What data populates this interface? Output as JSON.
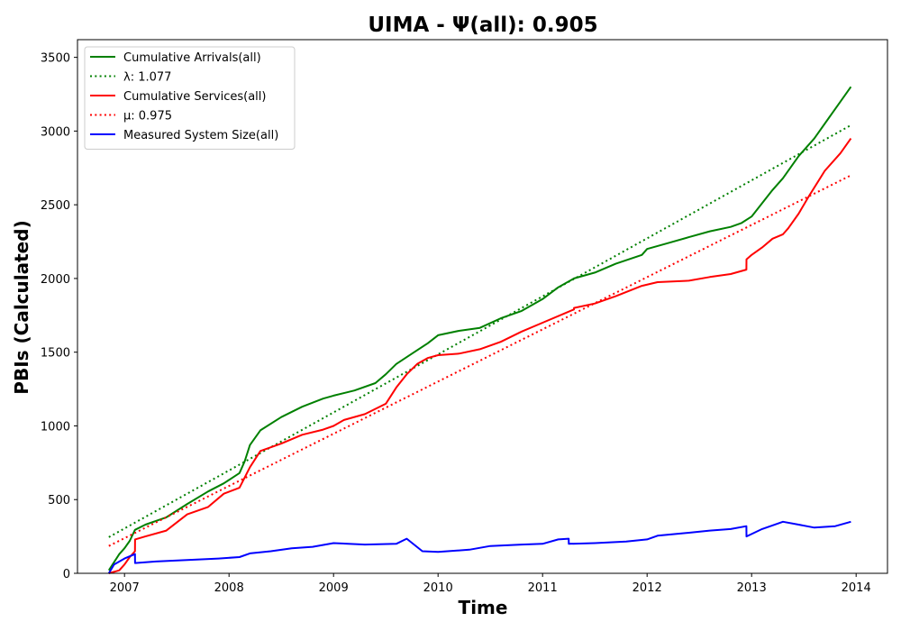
{
  "chart_data": {
    "type": "line",
    "title": "UIMA -  Ψ(all): 0.905",
    "xlabel": "Time",
    "ylabel": "PBIs (Calculated)",
    "xlim": [
      2006.55,
      2014.3
    ],
    "ylim": [
      0,
      3620
    ],
    "x_ticks": [
      2007,
      2008,
      2009,
      2010,
      2011,
      2012,
      2013,
      2014
    ],
    "x_tick_labels": [
      "2007",
      "2008",
      "2009",
      "2010",
      "2011",
      "2012",
      "2013",
      "2014"
    ],
    "y_ticks": [
      0,
      500,
      1000,
      1500,
      2000,
      2500,
      3000,
      3500
    ],
    "y_tick_labels": [
      "0",
      "500",
      "1000",
      "1500",
      "2000",
      "2500",
      "3000",
      "3500"
    ],
    "grid": false,
    "legend_position": "top-left",
    "legend": [
      "Cumulative Arrivals(all)",
      "λ: 1.077",
      "Cumulative Services(all)",
      "μ: 0.975",
      "Measured System Size(all)"
    ],
    "series": [
      {
        "name": "Cumulative Arrivals(all)",
        "color": "#008000",
        "style": "solid",
        "x": [
          2006.85,
          2006.95,
          2007.0,
          2007.05,
          2007.1,
          2007.2,
          2007.4,
          2007.6,
          2007.8,
          2007.95,
          2008.1,
          2008.15,
          2008.2,
          2008.3,
          2008.5,
          2008.7,
          2008.9,
          2009.0,
          2009.2,
          2009.4,
          2009.5,
          2009.6,
          2009.75,
          2009.9,
          2010.0,
          2010.2,
          2010.4,
          2010.6,
          2010.8,
          2011.0,
          2011.15,
          2011.3,
          2011.5,
          2011.7,
          2011.95,
          2012.0,
          2012.2,
          2012.4,
          2012.6,
          2012.8,
          2012.9,
          2013.0,
          2013.1,
          2013.2,
          2013.3,
          2013.45,
          2013.6,
          2013.75,
          2013.85,
          2013.95
        ],
        "y": [
          20,
          130,
          170,
          220,
          295,
          330,
          380,
          470,
          555,
          610,
          680,
          760,
          870,
          970,
          1060,
          1130,
          1185,
          1205,
          1240,
          1290,
          1350,
          1420,
          1490,
          1560,
          1615,
          1645,
          1665,
          1730,
          1780,
          1860,
          1940,
          2000,
          2040,
          2100,
          2160,
          2200,
          2240,
          2280,
          2320,
          2350,
          2375,
          2420,
          2510,
          2600,
          2680,
          2830,
          2950,
          3100,
          3200,
          3300
        ]
      },
      {
        "name": "λ: 1.077",
        "color": "#008000",
        "style": "dotted",
        "x": [
          2006.85,
          2013.95
        ],
        "y": [
          245,
          3040
        ]
      },
      {
        "name": "Cumulative Services(all)",
        "color": "#ff0000",
        "style": "solid",
        "x": [
          2006.85,
          2006.95,
          2007.0,
          2007.05,
          2007.1,
          2007.101,
          2007.2,
          2007.4,
          2007.6,
          2007.8,
          2007.95,
          2008.1,
          2008.2,
          2008.3,
          2008.5,
          2008.7,
          2008.9,
          2009.0,
          2009.1,
          2009.3,
          2009.5,
          2009.6,
          2009.7,
          2009.8,
          2009.9,
          2010.0,
          2010.2,
          2010.4,
          2010.6,
          2010.8,
          2011.0,
          2011.2,
          2011.3,
          2011.301,
          2011.5,
          2011.7,
          2011.95,
          2012.1,
          2012.4,
          2012.6,
          2012.8,
          2012.95,
          2012.951,
          2013.0,
          2013.1,
          2013.2,
          2013.3,
          2013.35,
          2013.45,
          2013.55,
          2013.7,
          2013.85,
          2013.95
        ],
        "y": [
          0,
          20,
          60,
          110,
          150,
          230,
          250,
          290,
          400,
          450,
          540,
          580,
          720,
          830,
          880,
          940,
          975,
          1000,
          1040,
          1080,
          1150,
          1260,
          1350,
          1420,
          1460,
          1480,
          1490,
          1520,
          1570,
          1640,
          1700,
          1760,
          1790,
          1800,
          1830,
          1880,
          1950,
          1975,
          1985,
          2010,
          2030,
          2060,
          2130,
          2160,
          2210,
          2270,
          2300,
          2340,
          2440,
          2560,
          2730,
          2850,
          2950
        ]
      },
      {
        "name": "μ: 0.975",
        "color": "#ff0000",
        "style": "dotted",
        "x": [
          2006.85,
          2013.95
        ],
        "y": [
          185,
          2700
        ]
      },
      {
        "name": "Measured System Size(all)",
        "color": "#0000ff",
        "style": "solid",
        "x": [
          2006.85,
          2006.9,
          2007.0,
          2007.1,
          2007.101,
          2007.3,
          2007.6,
          2007.9,
          2008.1,
          2008.2,
          2008.4,
          2008.6,
          2008.8,
          2009.0,
          2009.3,
          2009.6,
          2009.7,
          2009.85,
          2010.0,
          2010.3,
          2010.5,
          2010.8,
          2011.0,
          2011.15,
          2011.25,
          2011.251,
          2011.5,
          2011.8,
          2012.0,
          2012.1,
          2012.4,
          2012.6,
          2012.8,
          2012.95,
          2012.951,
          2013.1,
          2013.3,
          2013.45,
          2013.6,
          2013.8,
          2013.95
        ],
        "y": [
          0,
          60,
          100,
          130,
          70,
          80,
          90,
          100,
          110,
          135,
          150,
          170,
          180,
          205,
          195,
          200,
          235,
          150,
          145,
          160,
          185,
          195,
          200,
          230,
          235,
          200,
          205,
          215,
          230,
          255,
          275,
          290,
          300,
          320,
          250,
          300,
          350,
          330,
          310,
          320,
          350
        ]
      }
    ]
  }
}
